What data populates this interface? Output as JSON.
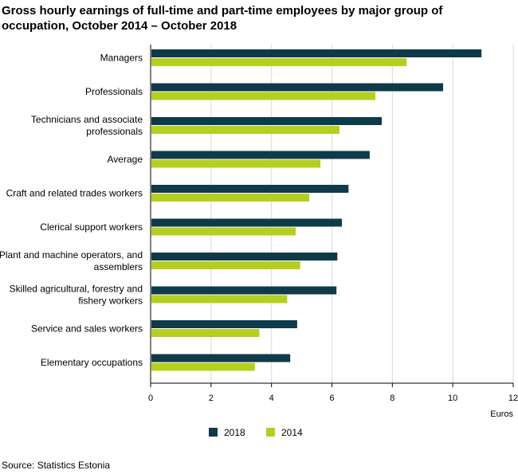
{
  "chart_data": {
    "type": "bar",
    "orientation": "horizontal",
    "title": "Gross hourly earnings of full-time and part-time employees by major group of occupation, October 2014 – October 2018",
    "source": "Source: Statistics Estonia",
    "xlabel": "Euros",
    "ylabel": "",
    "xlim": [
      0,
      12
    ],
    "xticks": [
      0,
      2,
      4,
      6,
      8,
      10,
      12
    ],
    "grid": true,
    "legend_position": "bottom",
    "categories": [
      [
        "Managers"
      ],
      [
        "Professionals"
      ],
      [
        "Technicians and associate",
        "professionals"
      ],
      [
        "Average"
      ],
      [
        "Craft and related trades workers"
      ],
      [
        "Clerical support workers"
      ],
      [
        "Plant and machine operators, and",
        "assemblers"
      ],
      [
        "Skilled agricultural, forestry and",
        "fishery workers"
      ],
      [
        "Service and sales workers"
      ],
      [
        "Elementary occupations"
      ]
    ],
    "series": [
      {
        "name": "2018",
        "color": "#0f3a4a",
        "values": [
          10.95,
          9.68,
          7.65,
          7.25,
          6.55,
          6.33,
          6.18,
          6.15,
          4.85,
          4.62
        ]
      },
      {
        "name": "2014",
        "color": "#b4cf1f",
        "values": [
          8.47,
          7.44,
          6.25,
          5.62,
          5.25,
          4.8,
          4.95,
          4.52,
          3.6,
          3.45
        ]
      }
    ]
  }
}
